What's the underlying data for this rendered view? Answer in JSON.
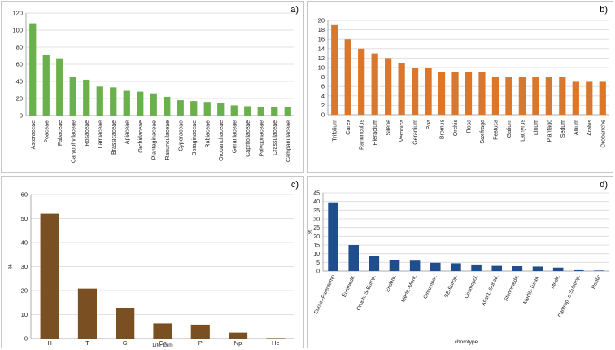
{
  "chart_data": [
    {
      "id": "a",
      "panel_label": "a)",
      "type": "bar",
      "title": "",
      "xlabel": "",
      "ylabel": "",
      "ylim": [
        0,
        120
      ],
      "yticks": [
        0,
        20,
        40,
        60,
        80,
        100,
        120
      ],
      "grid": true,
      "color": "#6ab04c",
      "label_rotation": "vertical",
      "categories": [
        "Asteraceae",
        "Poaceae",
        "Fabaceae",
        "Caryophyllaceae",
        "Rosaceae",
        "Lamiaceae",
        "Brassicaceae",
        "Apiaceae",
        "Orchidaceae",
        "Plantaginaceae",
        "Ranunculaceae",
        "Cyperaceae",
        "Boraginaceae",
        "Rubiaceae",
        "Orobanchaceae",
        "Geraniaceae",
        "Caprifoliaceae",
        "Polygonaceae",
        "Crassulaceae",
        "Campanulaceae"
      ],
      "values": [
        108,
        71,
        67,
        45,
        42,
        34,
        33,
        29,
        28,
        26,
        22,
        18,
        17,
        16,
        15,
        12,
        11,
        10,
        10,
        10
      ]
    },
    {
      "id": "b",
      "panel_label": "b)",
      "type": "bar",
      "title": "",
      "xlabel": "",
      "ylabel": "",
      "ylim": [
        0,
        20
      ],
      "yticks": [
        0,
        2,
        4,
        6,
        8,
        10,
        12,
        14,
        16,
        18,
        20
      ],
      "grid": true,
      "color": "#d9782d",
      "label_rotation": "vertical",
      "categories": [
        "Trifolium",
        "Carex",
        "Ranunculus",
        "Hieracium",
        "Silene",
        "Veronica",
        "Geranium",
        "Poa",
        "Bromus",
        "Orchis",
        "Rosa",
        "Saxifraga",
        "Festuca",
        "Galium",
        "Lathyrus",
        "Linum",
        "Plantago",
        "Sedum",
        "Allium",
        "Arabis",
        "Orobanche"
      ],
      "values": [
        19,
        16,
        14,
        13,
        12,
        11,
        10,
        10,
        9,
        9,
        9,
        9,
        8,
        8,
        8,
        8,
        8,
        8,
        7,
        7,
        7
      ]
    },
    {
      "id": "c",
      "panel_label": "c)",
      "type": "bar",
      "title": "",
      "xlabel": "Life form",
      "ylabel": "%",
      "ylim": [
        0,
        60
      ],
      "yticks": [
        0,
        10,
        20,
        30,
        40,
        50,
        60
      ],
      "grid": true,
      "color": "#7a5023",
      "label_rotation": "none",
      "categories": [
        "H",
        "T",
        "G",
        "Ch",
        "P",
        "Np",
        "He"
      ],
      "values": [
        52,
        20.8,
        12.7,
        6.3,
        5.8,
        2.5,
        0.2
      ]
    },
    {
      "id": "d",
      "panel_label": "d)",
      "type": "bar",
      "title": "",
      "xlabel": "chorotype",
      "ylabel": "%",
      "ylim": [
        0,
        45
      ],
      "yticks": [
        0,
        5,
        10,
        15,
        20,
        25,
        30,
        35,
        40,
        45
      ],
      "grid": true,
      "color": "#1f4e8c",
      "label_rotation": "diagonal",
      "categories": [
        "Euras.-Paleotemp",
        "Eurimedit.",
        "Oroph. S-Europ.",
        "Endem.",
        "Medit.-Mont.",
        "Circumbor.",
        "SE-Europ.",
        "Cosmopol.",
        "Atlant.-Subatl.",
        "Stenomedit.",
        "Medit.-Turan.",
        "Medit.",
        "Pantrop. e Subtrop.",
        "Pontic"
      ],
      "values": [
        39.5,
        15,
        8.5,
        6.5,
        6,
        4.8,
        4.5,
        3.8,
        3,
        2.8,
        2.6,
        2,
        0.5,
        0.3
      ]
    }
  ]
}
